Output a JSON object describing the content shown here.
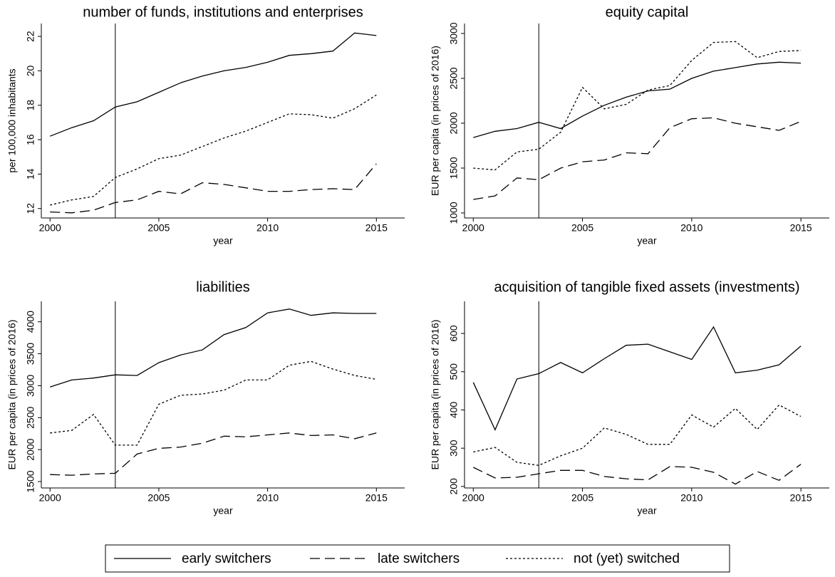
{
  "chart_data": [
    {
      "type": "line",
      "title": "number of funds, institutions and enterprises",
      "xlabel": "year",
      "ylabel": "per 100,000 inhabitants",
      "x": [
        2000,
        2001,
        2002,
        2003,
        2004,
        2005,
        2006,
        2007,
        2008,
        2009,
        2010,
        2011,
        2012,
        2013,
        2014,
        2015
      ],
      "xlim": [
        1999.6,
        2016.3
      ],
      "xticks": [
        2000,
        2005,
        2010,
        2015
      ],
      "ylim": [
        11.45,
        22.75
      ],
      "yticks": [
        12,
        14,
        16,
        18,
        20,
        22
      ],
      "vline": 2003,
      "series": [
        {
          "name": "early switchers",
          "color": "#000000",
          "dash": "solid",
          "values": [
            16.2,
            16.7,
            17.1,
            17.9,
            18.2,
            18.75,
            19.3,
            19.7,
            20.0,
            20.2,
            20.5,
            20.9,
            21.0,
            21.15,
            22.2,
            22.05
          ]
        },
        {
          "name": "late switchers",
          "color": "#000000",
          "dash": "dashed",
          "values": [
            11.8,
            11.75,
            11.9,
            12.35,
            12.5,
            13.0,
            12.85,
            13.5,
            13.4,
            13.2,
            13.0,
            13.0,
            13.1,
            13.15,
            13.1,
            14.6
          ]
        },
        {
          "name": "not (yet) switched",
          "color": "#000000",
          "dash": "dotted",
          "values": [
            12.2,
            12.5,
            12.7,
            13.8,
            14.3,
            14.9,
            15.1,
            15.6,
            16.1,
            16.5,
            17.0,
            17.5,
            17.45,
            17.25,
            17.8,
            18.6
          ]
        }
      ]
    },
    {
      "type": "line",
      "title": "equity capital",
      "xlabel": "year",
      "ylabel": "EUR per capita (in prices of 2016)",
      "x": [
        2000,
        2001,
        2002,
        2003,
        2004,
        2005,
        2006,
        2007,
        2008,
        2009,
        2010,
        2011,
        2012,
        2013,
        2014,
        2015
      ],
      "xlim": [
        1999.6,
        2016.3
      ],
      "xticks": [
        2000,
        2005,
        2010,
        2015
      ],
      "ylim": [
        944,
        3111
      ],
      "yticks": [
        1000,
        1500,
        2000,
        2500,
        3000
      ],
      "vline": 2003,
      "series": [
        {
          "values": [
            1840,
            1910,
            1940,
            2010,
            1940,
            2080,
            2200,
            2290,
            2360,
            2380,
            2500,
            2580,
            2620,
            2660,
            2680,
            2670
          ]
        },
        {
          "values": [
            1150,
            1190,
            1390,
            1370,
            1500,
            1570,
            1590,
            1670,
            1660,
            1950,
            2050,
            2060,
            2000,
            1960,
            1920,
            2020
          ]
        },
        {
          "values": [
            1500,
            1480,
            1680,
            1710,
            1900,
            2400,
            2160,
            2210,
            2370,
            2420,
            2700,
            2900,
            2910,
            2730,
            2800,
            2810
          ]
        }
      ]
    },
    {
      "type": "line",
      "title": "liabilities",
      "xlabel": "year",
      "ylabel": "EUR per capita (in prices of 2016)",
      "x": [
        2000,
        2001,
        2002,
        2003,
        2004,
        2005,
        2006,
        2007,
        2008,
        2009,
        2010,
        2011,
        2012,
        2013,
        2014,
        2015
      ],
      "xlim": [
        1999.6,
        2016.3
      ],
      "xticks": [
        2000,
        2005,
        2010,
        2015
      ],
      "ylim": [
        1400,
        4320
      ],
      "yticks": [
        1500,
        2000,
        2500,
        3000,
        3500,
        4000
      ],
      "vline": 2003,
      "series": [
        {
          "values": [
            2980,
            3090,
            3120,
            3170,
            3160,
            3360,
            3480,
            3560,
            3800,
            3910,
            4140,
            4200,
            4100,
            4140,
            4130,
            4130
          ]
        },
        {
          "values": [
            1610,
            1600,
            1620,
            1630,
            1930,
            2020,
            2040,
            2100,
            2210,
            2200,
            2230,
            2260,
            2220,
            2230,
            2170,
            2260
          ]
        },
        {
          "values": [
            2260,
            2300,
            2550,
            2070,
            2070,
            2710,
            2850,
            2870,
            2930,
            3090,
            3090,
            3320,
            3380,
            3260,
            3160,
            3100
          ]
        }
      ]
    },
    {
      "type": "line",
      "title": "acquisition of tangible fixed assets (investments)",
      "xlabel": "year",
      "ylabel": "EUR per capita (in prices of 2016)",
      "x": [
        2000,
        2001,
        2002,
        2003,
        2004,
        2005,
        2006,
        2007,
        2008,
        2009,
        2010,
        2011,
        2012,
        2013,
        2014,
        2015
      ],
      "xlim": [
        1999.6,
        2016.3
      ],
      "xticks": [
        2000,
        2005,
        2010,
        2015
      ],
      "ylim": [
        196,
        684
      ],
      "yticks": [
        200,
        300,
        400,
        500,
        600
      ],
      "vline": 2003,
      "series": [
        {
          "values": [
            472,
            348,
            481,
            495,
            524,
            497,
            534,
            569,
            572,
            552,
            532,
            617,
            497,
            504,
            518,
            567
          ]
        },
        {
          "values": [
            250,
            222,
            224,
            233,
            242,
            242,
            226,
            220,
            217,
            252,
            250,
            237,
            206,
            239,
            216,
            258
          ]
        },
        {
          "values": [
            290,
            302,
            263,
            255,
            280,
            300,
            353,
            336,
            310,
            310,
            387,
            355,
            404,
            349,
            413,
            383
          ]
        }
      ]
    }
  ]
}
